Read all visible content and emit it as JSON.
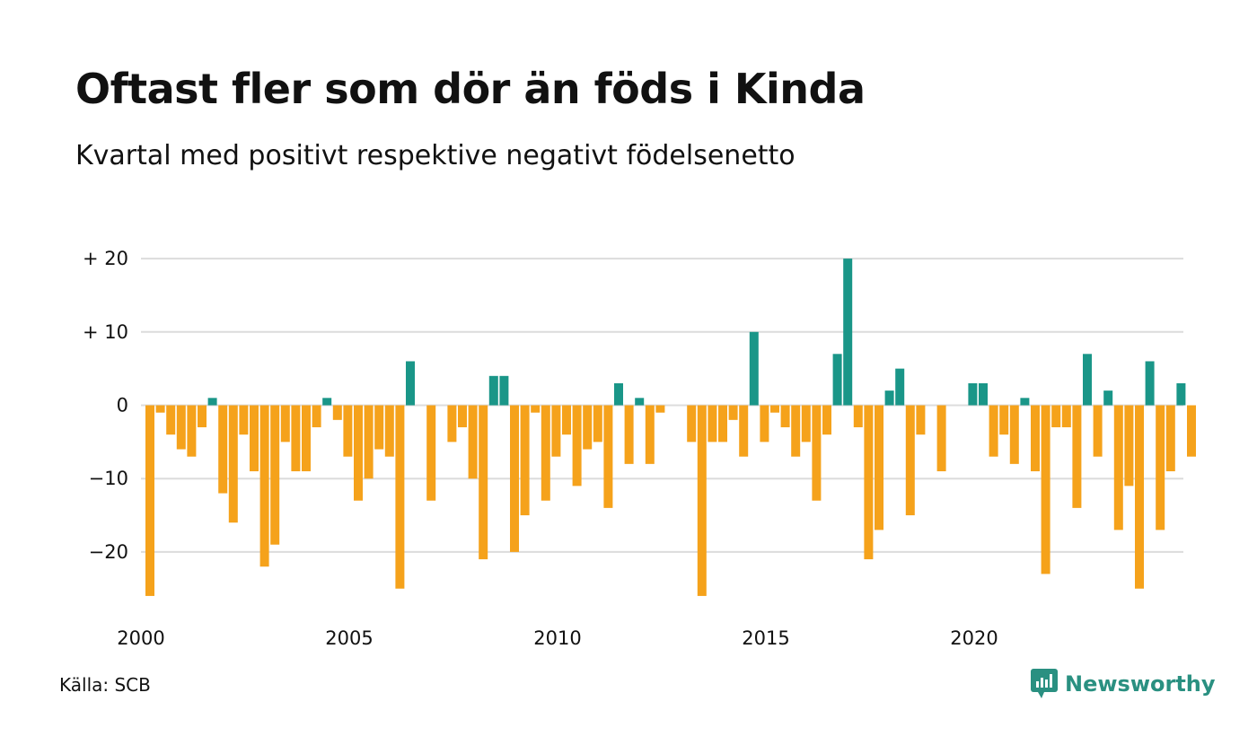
{
  "title": "Oftast fler som dör än föds i Kinda",
  "subtitle": "Kvartal med positivt respektive negativt födelsenetto",
  "source": "Källa: SCB",
  "brand": {
    "name": "Newsworthy",
    "icon": "newsworthy-logo-icon"
  },
  "colors": {
    "positive": "#1a9688",
    "negative": "#f5a21b",
    "grid": "#dcdcdc",
    "text": "#111111"
  },
  "chart_data": {
    "type": "bar",
    "x_start": "2000 Q1",
    "x_frequency": "quarter",
    "values": [
      -26,
      -1,
      -4,
      -6,
      -7,
      -3,
      1,
      -12,
      -16,
      -4,
      -9,
      -22,
      -19,
      -5,
      -9,
      -9,
      -3,
      1,
      -2,
      -7,
      -13,
      -10,
      -6,
      -7,
      -25,
      6,
      0,
      -13,
      0,
      -5,
      -3,
      -10,
      -21,
      4,
      4,
      -20,
      -15,
      -1,
      -13,
      -7,
      -4,
      -11,
      -6,
      -5,
      -14,
      3,
      -8,
      1,
      -8,
      -1,
      0,
      0,
      -5,
      -26,
      -5,
      -5,
      -2,
      -7,
      10,
      -5,
      -1,
      -3,
      -7,
      -5,
      -13,
      -4,
      7,
      20,
      -3,
      -21,
      -17,
      2,
      5,
      -15,
      -4,
      0,
      -9,
      0,
      0,
      3,
      3,
      -7,
      -4,
      -8,
      1,
      -9,
      -23,
      -3,
      -3,
      -14,
      7,
      -7,
      2,
      -17,
      -11,
      -25,
      6,
      -17,
      -9,
      3,
      -7
    ],
    "y_ticks": [
      20,
      10,
      0,
      -10,
      -20
    ],
    "y_tick_labels": [
      "+ 20",
      "+ 10",
      "0",
      "−10",
      "−20"
    ],
    "x_ticks": [
      "2000",
      "2005",
      "2010",
      "2015",
      "2020"
    ],
    "ylim": [
      -26,
      20
    ],
    "grid": true,
    "xlabel": "",
    "ylabel": ""
  }
}
